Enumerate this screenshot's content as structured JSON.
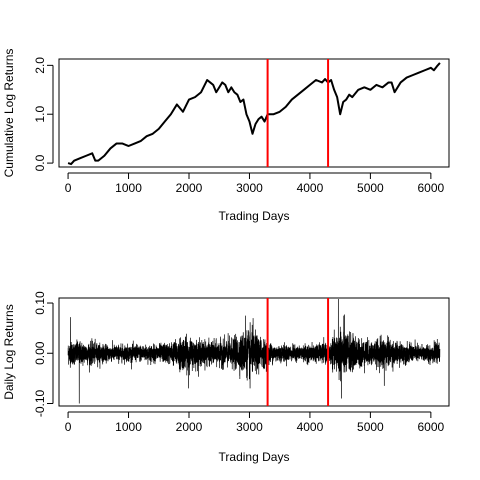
{
  "chart_data": [
    {
      "type": "line",
      "title": "",
      "xlabel": "Trading Days",
      "ylabel": "Cumulative Log Returns",
      "xlim": [
        -150,
        6300
      ],
      "ylim": [
        -0.08,
        2.13
      ],
      "x_ticks": [
        0,
        1000,
        2000,
        3000,
        4000,
        5000,
        6000
      ],
      "x_tick_labels": [
        "0",
        "1000",
        "2000",
        "3000",
        "4000",
        "5000",
        "6000"
      ],
      "y_ticks": [
        0.0,
        1.0,
        2.0
      ],
      "y_tick_labels": [
        "0.0",
        "1.0",
        "2.0"
      ],
      "grid": false,
      "legend": "none",
      "series_color": "#000000",
      "vlines": [
        3300,
        4300
      ],
      "vline_color": "#ff0000",
      "series": [
        {
          "x": [
            0,
            50,
            100,
            200,
            300,
            400,
            450,
            500,
            600,
            700,
            800,
            900,
            1000,
            1100,
            1200,
            1300,
            1400,
            1500,
            1600,
            1700,
            1800,
            1900,
            2000,
            2100,
            2200,
            2300,
            2350,
            2400,
            2450,
            2500,
            2550,
            2600,
            2650,
            2700,
            2750,
            2800,
            2850,
            2900,
            2950,
            3000,
            3050,
            3100,
            3150,
            3200,
            3250,
            3300,
            3400,
            3500,
            3600,
            3700,
            3800,
            3900,
            4000,
            4100,
            4200,
            4250,
            4300,
            4350,
            4400,
            4450,
            4500,
            4550,
            4600,
            4650,
            4700,
            4800,
            4900,
            5000,
            5100,
            5200,
            5300,
            5350,
            5400,
            5500,
            5600,
            5700,
            5800,
            5900,
            6000,
            6050,
            6100,
            6150
          ],
          "y": [
            0.0,
            -0.02,
            0.05,
            0.1,
            0.15,
            0.2,
            0.05,
            0.05,
            0.15,
            0.3,
            0.4,
            0.4,
            0.35,
            0.4,
            0.45,
            0.55,
            0.6,
            0.7,
            0.85,
            1.0,
            1.2,
            1.05,
            1.3,
            1.35,
            1.45,
            1.7,
            1.65,
            1.6,
            1.45,
            1.55,
            1.65,
            1.6,
            1.45,
            1.55,
            1.45,
            1.4,
            1.25,
            1.3,
            1.0,
            0.85,
            0.6,
            0.8,
            0.9,
            0.95,
            0.85,
            1.0,
            1.0,
            1.05,
            1.15,
            1.3,
            1.4,
            1.5,
            1.6,
            1.7,
            1.65,
            1.72,
            1.65,
            1.7,
            1.5,
            1.35,
            1.0,
            1.25,
            1.3,
            1.4,
            1.35,
            1.5,
            1.55,
            1.5,
            1.6,
            1.55,
            1.65,
            1.65,
            1.45,
            1.65,
            1.75,
            1.8,
            1.85,
            1.9,
            1.95,
            1.9,
            1.98,
            2.05
          ]
        }
      ]
    },
    {
      "type": "line",
      "title": "",
      "xlabel": "Trading Days",
      "ylabel": "Daily Log Returns",
      "xlim": [
        -150,
        6300
      ],
      "ylim": [
        -0.105,
        0.11
      ],
      "x_ticks": [
        0,
        1000,
        2000,
        3000,
        4000,
        5000,
        6000
      ],
      "x_tick_labels": [
        "0",
        "1000",
        "2000",
        "3000",
        "4000",
        "5000",
        "6000"
      ],
      "y_ticks": [
        -0.1,
        0.0,
        0.1
      ],
      "y_tick_labels": [
        "-0.10",
        "0.00",
        "0.10"
      ],
      "grid": false,
      "legend": "none",
      "series_color": "#000000",
      "vlines": [
        3300,
        4300
      ],
      "vline_color": "#ff0000",
      "n_points": 6150,
      "volatility_profile": {
        "x": [
          0,
          400,
          600,
          1000,
          1400,
          1700,
          1900,
          2000,
          2200,
          2400,
          2600,
          2800,
          2900,
          3000,
          3100,
          3200,
          3300,
          3500,
          3800,
          4000,
          4200,
          4300,
          4400,
          4500,
          4600,
          4800,
          5000,
          5100,
          5200,
          5400,
          5600,
          5800,
          6150
        ],
        "sd": [
          0.011,
          0.011,
          0.008,
          0.008,
          0.008,
          0.01,
          0.016,
          0.014,
          0.012,
          0.011,
          0.013,
          0.015,
          0.02,
          0.022,
          0.018,
          0.015,
          0.01,
          0.008,
          0.007,
          0.008,
          0.009,
          0.009,
          0.014,
          0.025,
          0.02,
          0.014,
          0.012,
          0.011,
          0.016,
          0.011,
          0.009,
          0.008,
          0.009
        ]
      },
      "spikes": [
        {
          "x": 40,
          "y": 0.072
        },
        {
          "x": 185,
          "y": -0.1
        },
        {
          "x": 1990,
          "y": -0.07
        },
        {
          "x": 2935,
          "y": 0.075
        },
        {
          "x": 3010,
          "y": -0.07
        },
        {
          "x": 3060,
          "y": 0.07
        },
        {
          "x": 4470,
          "y": 0.108
        },
        {
          "x": 4520,
          "y": -0.09
        },
        {
          "x": 4560,
          "y": 0.075
        },
        {
          "x": 5230,
          "y": -0.065
        }
      ]
    }
  ]
}
